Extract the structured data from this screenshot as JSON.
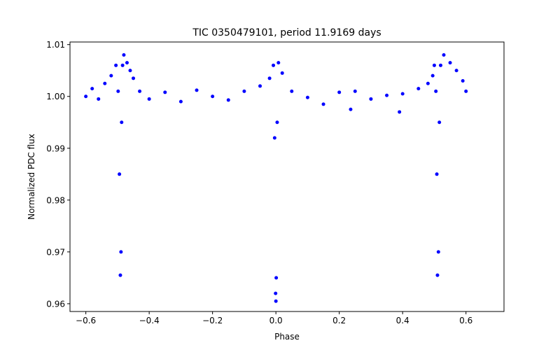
{
  "chart_data": {
    "type": "scatter",
    "title": "TIC 0350479101, period 11.9169 days",
    "xlabel": "Phase",
    "ylabel": "Normalized PDC flux",
    "xlim": [
      -0.65,
      0.72
    ],
    "ylim": [
      0.9585,
      1.0105
    ],
    "xticks": [
      -0.6,
      -0.4,
      -0.2,
      0.0,
      0.2,
      0.4,
      0.6
    ],
    "xtick_labels": [
      "−0.6",
      "−0.4",
      "−0.2",
      "0.0",
      "0.2",
      "0.4",
      "0.6"
    ],
    "yticks": [
      0.96,
      0.97,
      0.98,
      0.99,
      1.0,
      1.01
    ],
    "ytick_labels": [
      "0.96",
      "0.97",
      "0.98",
      "0.99",
      "1.00",
      "1.01"
    ],
    "grid": false,
    "legend": "none",
    "series": [
      {
        "name": "flux",
        "color": "#0000ff",
        "x": [
          -0.6,
          -0.58,
          -0.56,
          -0.54,
          -0.52,
          -0.505,
          -0.498,
          -0.494,
          -0.491,
          -0.489,
          -0.487,
          -0.484,
          -0.48,
          -0.47,
          -0.46,
          -0.45,
          -0.43,
          -0.4,
          -0.35,
          -0.3,
          -0.25,
          -0.2,
          -0.15,
          -0.1,
          -0.05,
          -0.02,
          -0.008,
          -0.004,
          -0.001,
          0.0,
          0.001,
          0.004,
          0.008,
          0.02,
          0.05,
          0.1,
          0.15,
          0.2,
          0.236,
          0.25,
          0.3,
          0.35,
          0.39,
          0.4,
          0.45,
          0.48,
          0.495,
          0.5,
          0.505,
          0.508,
          0.51,
          0.513,
          0.516,
          0.52,
          0.53,
          0.55,
          0.57,
          0.59,
          0.6
        ],
        "y": [
          1.0,
          1.0015,
          0.9995,
          1.0025,
          1.004,
          1.006,
          1.001,
          0.985,
          0.9655,
          0.97,
          0.995,
          1.006,
          1.008,
          1.0065,
          1.005,
          1.0035,
          1.001,
          0.9995,
          1.0008,
          0.999,
          1.0012,
          1.0,
          0.9993,
          1.001,
          1.002,
          1.0035,
          1.006,
          0.992,
          0.962,
          0.9605,
          0.965,
          0.995,
          1.0065,
          1.0045,
          1.001,
          0.9998,
          0.9985,
          1.0008,
          0.9975,
          1.001,
          0.9995,
          1.0002,
          0.997,
          1.0005,
          1.0015,
          1.0025,
          1.004,
          1.006,
          1.001,
          0.985,
          0.9655,
          0.97,
          0.995,
          1.006,
          1.008,
          1.0065,
          1.005,
          1.003,
          1.001
        ]
      }
    ]
  }
}
